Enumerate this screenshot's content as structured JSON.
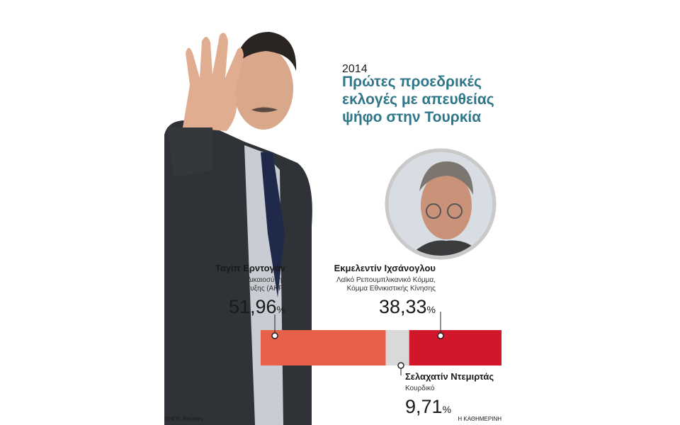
{
  "chart_data": {
    "type": "stacked_bar",
    "year": "2014",
    "title": [
      "Πρώτες προεδρικές",
      "εκλογές με απευθείας",
      "ψήφο στην Τουρκία"
    ],
    "categories": [
      null
    ],
    "xlim": [
      0,
      100
    ],
    "unit": "%",
    "series": [
      {
        "name": "Ταγίπ Ερντογάν",
        "party": [
          "Κόμμα Δικαιοσύνης",
          "και Ανάπτυξης (ΑΚΡ)"
        ],
        "color": "#e8604a",
        "values": [
          51.96
        ],
        "value_labels": [
          "51,96"
        ]
      },
      {
        "name": "Σελαχατίν Ντεμιρτάς",
        "party": [
          "Κουρδικό"
        ],
        "color": "#d9d9d9",
        "values": [
          9.71
        ],
        "value_labels": [
          "9,71"
        ]
      },
      {
        "name": "Εκμελεντίν Ιχσάνογλου",
        "party": [
          "Λαϊκό Ρεπουμπλικανικό Κόμμα,",
          "Κόμμα Εθνικιστικής Κίνησης"
        ],
        "color": "#d2172b",
        "values": [
          38.33
        ],
        "value_labels": [
          "38,33"
        ]
      }
    ],
    "source": "ΠΗΓΗ: Reuters",
    "credit": "Η ΚΑΘΗΜΕΡΙΝΗ"
  }
}
